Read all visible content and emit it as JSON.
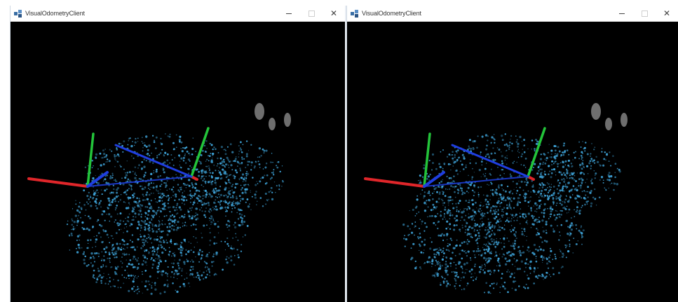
{
  "windows": [
    {
      "title": "VisualOdometryClient",
      "icon": "app-cube-icon",
      "controls": {
        "minimize": "—",
        "maximize": "□",
        "close": "✕"
      },
      "axis_colors": {
        "x": "#e0262a",
        "y": "#23c43a",
        "z": "#1f3ee0"
      },
      "point_color": "#3ea3d8"
    },
    {
      "title": "VisualOdometryClient",
      "icon": "app-cube-icon",
      "controls": {
        "minimize": "—",
        "maximize": "□",
        "close": "✕"
      },
      "axis_colors": {
        "x": "#e0262a",
        "y": "#23c43a",
        "z": "#1f3ee0"
      },
      "point_color": "#3ea3d8"
    }
  ]
}
